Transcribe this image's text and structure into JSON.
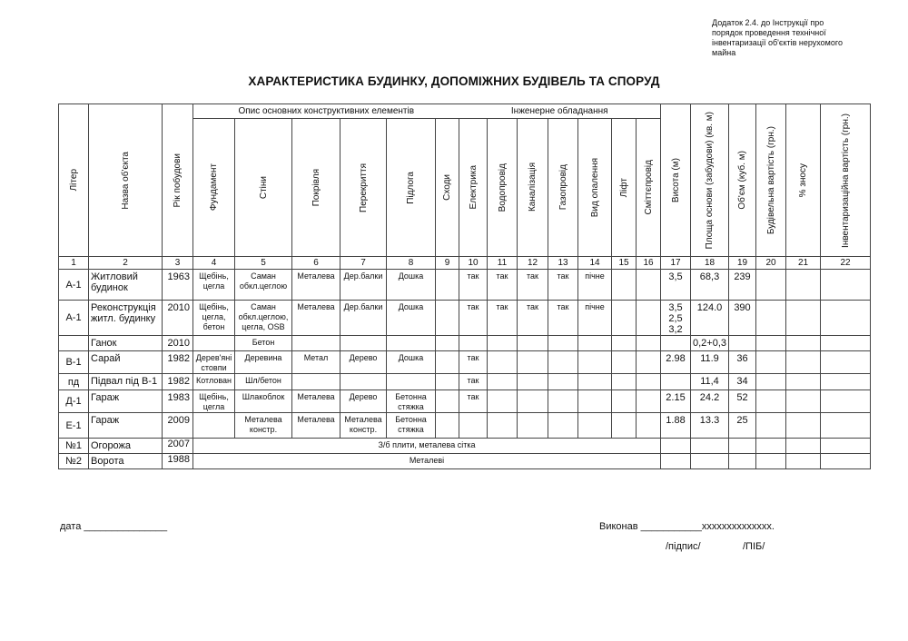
{
  "note": "Додаток 2.4. до Інструкції про порядок проведення технічної інвентаризації об'єктів нерухомого майна",
  "title": "ХАРАКТЕРИСТИКА БУДИНКУ, ДОПОМІЖНИХ БУДІВЕЛЬ ТА СПОРУД",
  "groups": {
    "construction": "Опис основних конструктивних елементів",
    "engineering": "Інженерне обладнання"
  },
  "columns": [
    "Літер",
    "Назва об'єкта",
    "Рік побудови",
    "Фундамент",
    "Стіни",
    "Покрівля",
    "Перекриття",
    "Підлога",
    "Сходи",
    "Електрика",
    "Водопровід",
    "Каналізація",
    "Газопровід",
    "Вид опалення",
    "Ліфт",
    "Сміттєпровід",
    "Висота (м)",
    "Площа основи (забудови) (кв. м)",
    "Об'єм (куб. м)",
    "Будівельна вартість (грн.)",
    "% зносу",
    "Інвентаризаційна вартість (грн.)"
  ],
  "column_numbers": [
    "1",
    "2",
    "3",
    "4",
    "5",
    "6",
    "7",
    "8",
    "9",
    "10",
    "11",
    "12",
    "13",
    "14",
    "15",
    "16",
    "17",
    "18",
    "19",
    "20",
    "21",
    "22"
  ],
  "rows": [
    [
      "А-1",
      "Житловий будинок",
      "1963",
      "Щебінь, цегла",
      "Саман обкл.цеглою",
      "Металева",
      "Дер.балки",
      "Дошка",
      "",
      "так",
      "так",
      "так",
      "так",
      "пічне",
      "",
      "",
      "3,5",
      "68,3",
      "239",
      "",
      "",
      ""
    ],
    [
      "А-1",
      "Реконструкція житл. будинку",
      "2010",
      "Щебінь, цегла, бетон",
      "Саман обкл.цеглою, цегла, OSB",
      "Металева",
      "Дер.балки",
      "Дошка",
      "",
      "так",
      "так",
      "так",
      "так",
      "пічне",
      "",
      "",
      "3,5\n2,5\n3,2",
      "124.0",
      "390",
      "",
      "",
      ""
    ],
    [
      "",
      "Ганок",
      "2010",
      "",
      "Бетон",
      "",
      "",
      "",
      "",
      "",
      "",
      "",
      "",
      "",
      "",
      "",
      "",
      "0,2+0,3",
      "",
      "",
      "",
      ""
    ],
    [
      "В-1",
      "Сарай",
      "1982",
      "Дерев'яні стовпи",
      "Деревина",
      "Метал",
      "Дерево",
      "Дошка",
      "",
      "так",
      "",
      "",
      "",
      "",
      "",
      "",
      "2.98",
      "11.9",
      "36",
      "",
      "",
      ""
    ],
    [
      "пд",
      "Підвал під В-1",
      "1982",
      "Котлован",
      "Шл/бетон",
      "",
      "",
      "",
      "",
      "так",
      "",
      "",
      "",
      "",
      "",
      "",
      "",
      "11,4",
      "34",
      "",
      "",
      ""
    ],
    [
      "Д-1",
      "Гараж",
      "1983",
      "Щебінь, цегла",
      "Шлакоблок",
      "Металева",
      "Дерево",
      "Бетонна стяжка",
      "",
      "так",
      "",
      "",
      "",
      "",
      "",
      "",
      "2.15",
      "24.2",
      "52",
      "",
      "",
      ""
    ],
    [
      "Е-1",
      "Гараж",
      "2009",
      "",
      "Металева констр.",
      "Металева",
      "Металева констр.",
      "Бетонна стяжка",
      "",
      "",
      "",
      "",
      "",
      "",
      "",
      "",
      "1.88",
      "13.3",
      "25",
      "",
      "",
      ""
    ]
  ],
  "merged_rows": [
    {
      "liter": "№1",
      "name": "Огорожа",
      "year": "2007",
      "description": "З/б плити, металева сітка"
    },
    {
      "liter": "№2",
      "name": "Ворота",
      "year": "1988",
      "description": "Металеві"
    }
  ],
  "footer": {
    "date_label": "дата _______________",
    "executor": "Виконав ___________xxxxxxxxxxxxxx.",
    "signature": "/підпис/",
    "name": "/ПІБ/"
  }
}
